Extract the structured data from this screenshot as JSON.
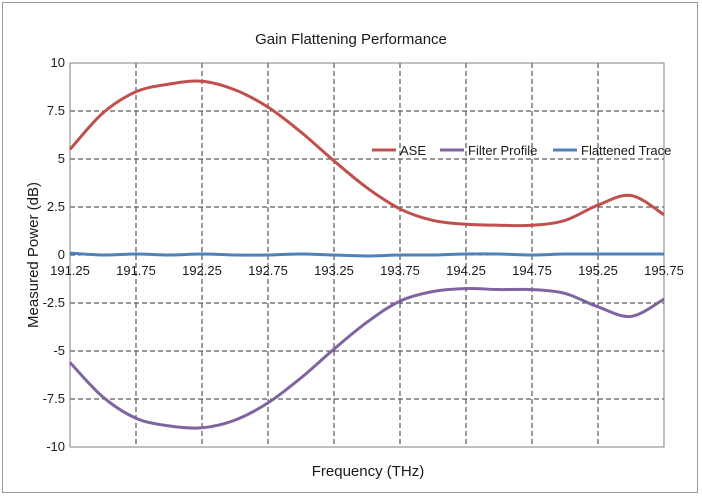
{
  "chart_data": {
    "type": "line",
    "title": "Gain Flattening Performance",
    "xlabel": "Frequency (THz)",
    "ylabel": "Measured  Power (dB)",
    "xlim": [
      191.25,
      195.75
    ],
    "ylim": [
      -10,
      10
    ],
    "x_ticks": [
      "191.25",
      "191.75",
      "192.25",
      "192.75",
      "193.25",
      "193.75",
      "194.25",
      "194.75",
      "195.25",
      "195.75"
    ],
    "y_ticks": [
      "10",
      "7.5",
      "5",
      "2.5",
      "0",
      "-2.5",
      "-5",
      "-7.5",
      "-10"
    ],
    "grid": true,
    "legend_position": "right-center",
    "series": [
      {
        "name": "ASE",
        "color": "#c0504d",
        "x": [
          191.25,
          191.5,
          191.75,
          192.0,
          192.25,
          192.5,
          192.75,
          193.0,
          193.25,
          193.5,
          193.75,
          194.0,
          194.25,
          194.5,
          194.75,
          195.0,
          195.25,
          195.5,
          195.75
        ],
        "y": [
          5.5,
          7.4,
          8.5,
          8.9,
          9.05,
          8.6,
          7.7,
          6.4,
          4.9,
          3.5,
          2.4,
          1.8,
          1.6,
          1.55,
          1.55,
          1.8,
          2.6,
          3.1,
          2.1
        ]
      },
      {
        "name": "Filter Profile",
        "color": "#8064a2",
        "x": [
          191.25,
          191.5,
          191.75,
          192.0,
          192.25,
          192.5,
          192.75,
          193.0,
          193.25,
          193.5,
          193.75,
          194.0,
          194.25,
          194.5,
          194.75,
          195.0,
          195.25,
          195.5,
          195.75
        ],
        "y": [
          -5.6,
          -7.4,
          -8.5,
          -8.9,
          -9.0,
          -8.6,
          -7.7,
          -6.4,
          -4.9,
          -3.5,
          -2.4,
          -1.9,
          -1.75,
          -1.8,
          -1.8,
          -2.0,
          -2.7,
          -3.2,
          -2.3
        ]
      },
      {
        "name": "Flattened Trace",
        "color": "#4f81bd",
        "x": [
          191.25,
          191.5,
          191.75,
          192.0,
          192.25,
          192.5,
          192.75,
          193.0,
          193.25,
          193.5,
          193.75,
          194.0,
          194.25,
          194.5,
          194.75,
          195.0,
          195.25,
          195.5,
          195.75
        ],
        "y": [
          0.1,
          0.0,
          0.05,
          0.0,
          0.05,
          0.0,
          0.0,
          0.05,
          0.0,
          -0.05,
          0.0,
          0.0,
          0.05,
          0.05,
          0.0,
          0.05,
          0.05,
          0.05,
          0.05
        ]
      }
    ]
  }
}
